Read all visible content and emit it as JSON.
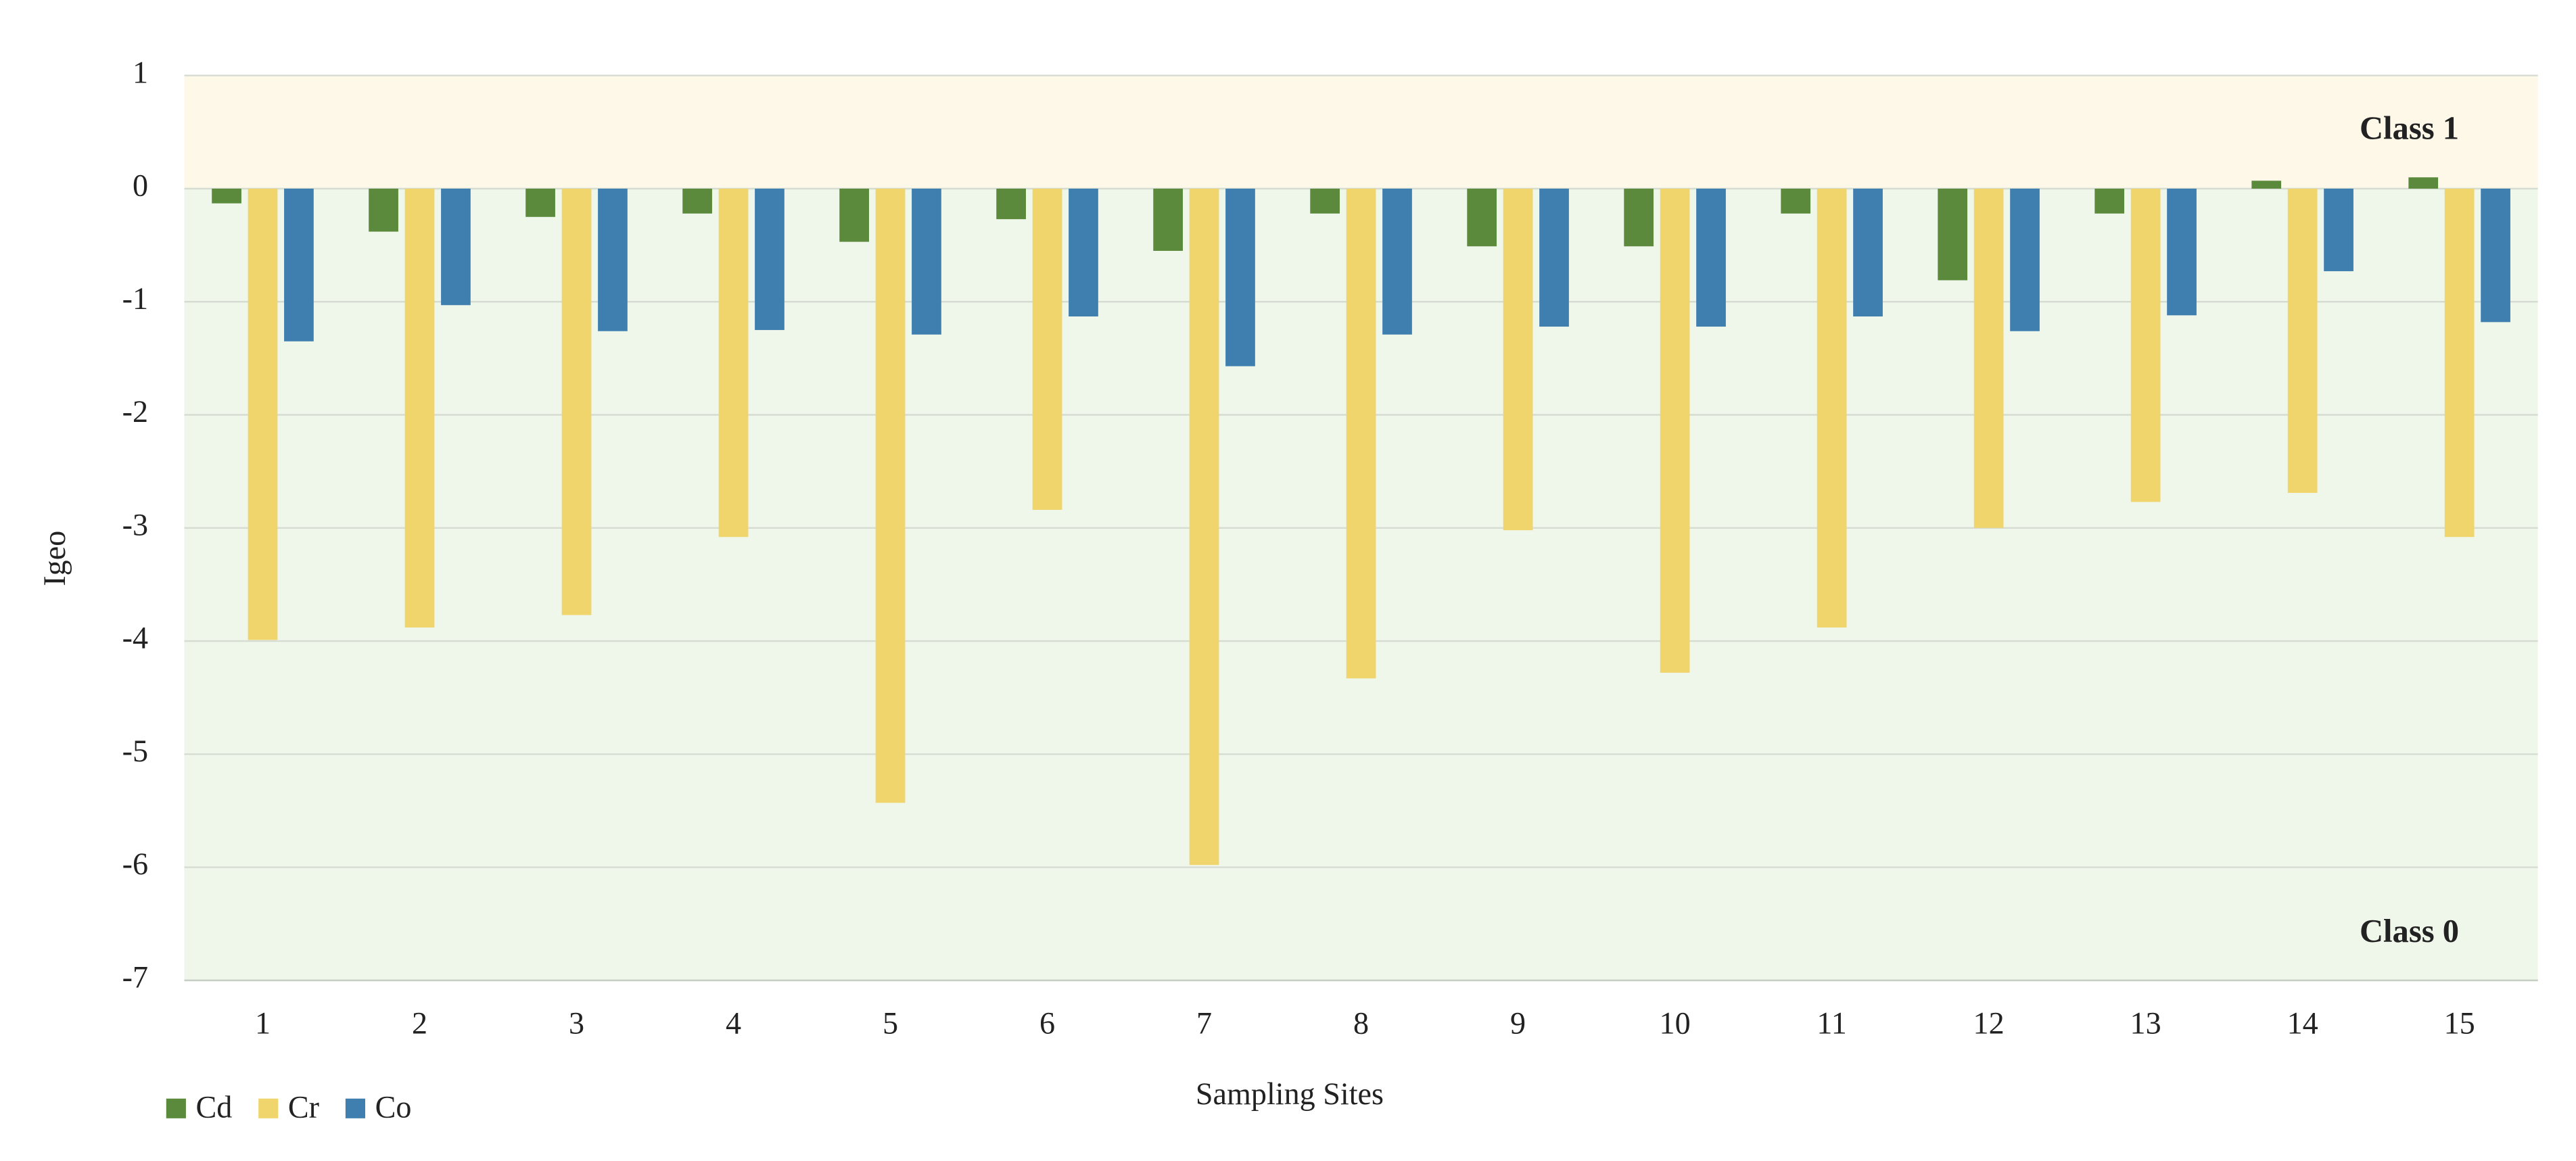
{
  "chart_data": {
    "type": "bar",
    "x_label": "Sampling Sites",
    "y_label": "Igeo",
    "categories": [
      "1",
      "2",
      "3",
      "4",
      "5",
      "6",
      "7",
      "8",
      "9",
      "10",
      "11",
      "12",
      "13",
      "14",
      "15"
    ],
    "series": [
      {
        "name": "Cd",
        "color": "#5b8a3c",
        "values": [
          -0.13,
          -0.38,
          -0.25,
          -0.22,
          -0.47,
          -0.27,
          -0.55,
          -0.22,
          -0.51,
          -0.51,
          -0.22,
          -0.81,
          -0.22,
          0.07,
          0.1
        ]
      },
      {
        "name": "Cr",
        "color": "#f0d46c",
        "values": [
          -3.99,
          -3.88,
          -3.77,
          -3.08,
          -5.43,
          -2.84,
          -5.98,
          -4.33,
          -3.02,
          -4.28,
          -3.88,
          -3.0,
          -2.77,
          -2.69,
          -3.08
        ]
      },
      {
        "name": "Co",
        "color": "#3f7fb0",
        "values": [
          -1.35,
          -1.03,
          -1.26,
          -1.25,
          -1.29,
          -1.13,
          -1.57,
          -1.29,
          -1.22,
          -1.22,
          -1.13,
          -1.26,
          -1.12,
          -0.73,
          -1.18
        ]
      }
    ],
    "bands": [
      {
        "label": "Class 1",
        "from": 0,
        "to": 1,
        "color": "#fdf8e7"
      },
      {
        "label": "Class 0",
        "from": -7,
        "to": 0,
        "color": "#eff6ea"
      }
    ],
    "ylim": [
      -7,
      1
    ],
    "yticks": [
      -7,
      -6,
      -5,
      -4,
      -3,
      -2,
      -1,
      0,
      1
    ],
    "grid": true,
    "legend": "bottom-left"
  }
}
